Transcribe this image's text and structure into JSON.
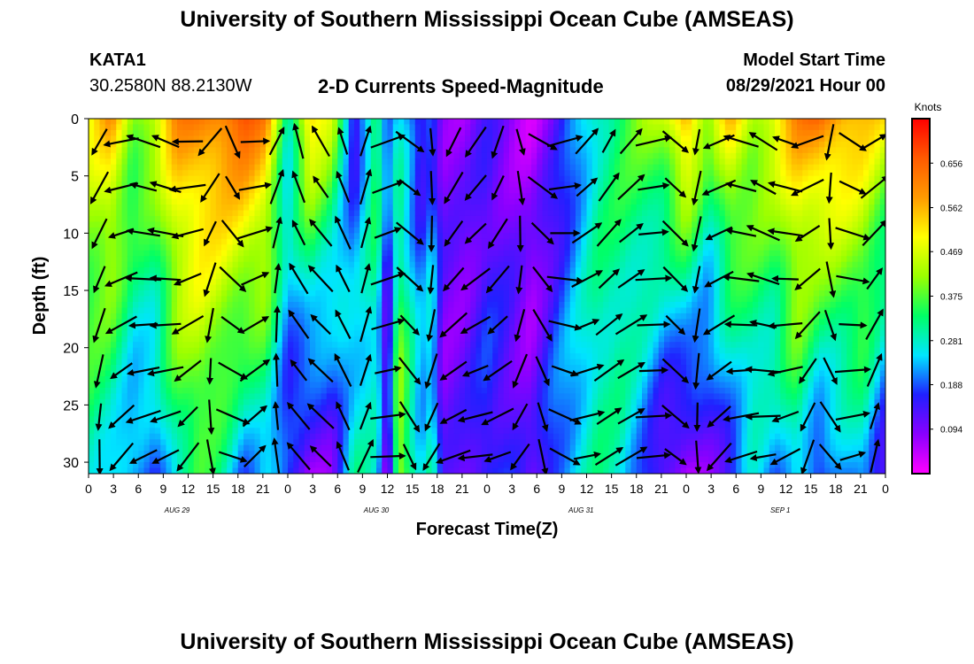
{
  "page": {
    "title_top": "University of Southern Mississippi Ocean Cube (AMSEAS)",
    "title_bottom": "University of Southern Mississippi Ocean Cube (AMSEAS)",
    "station": "KATA1",
    "coords": "30.2580N  88.2130W",
    "product": "2-D Currents Speed-Magnitude",
    "start_label": "Model Start Time",
    "start_value": "08/29/2021 Hour 00"
  },
  "colors": {
    "arrow": "#000000",
    "colormap": [
      "#ff00ff",
      "#8a00ff",
      "#2020ff",
      "#00e5ff",
      "#00ff66",
      "#9aff00",
      "#ffff00",
      "#ff9a00",
      "#ff5a00",
      "#ff0000"
    ]
  },
  "chart_data": {
    "type": "heatmap",
    "title": "2-D Currents Speed-Magnitude",
    "xlabel": "Forecast Time(Z)",
    "ylabel": "Depth (ft)",
    "colorbar_label": "Knots",
    "colorbar_ticks": [
      "0.656",
      "0.562",
      "0.469",
      "0.375",
      "0.281",
      "0.188",
      "0.094"
    ],
    "colorbar_tick_values": [
      0.656,
      0.562,
      0.469,
      0.375,
      0.281,
      0.188,
      0.094
    ],
    "vrange": [
      0.0,
      0.75
    ],
    "xlim": [
      0,
      72
    ],
    "ylim": [
      0,
      31
    ],
    "x_tick_labels": [
      "0",
      "3",
      "6",
      "9",
      "12",
      "15",
      "18",
      "21",
      "0",
      "3",
      "6",
      "9",
      "12",
      "15",
      "18",
      "21",
      "0",
      "3",
      "6",
      "9",
      "12",
      "15",
      "18",
      "21",
      "0",
      "3",
      "6",
      "9",
      "12",
      "15",
      "18",
      "21",
      "0"
    ],
    "day_labels": [
      {
        "hour": 8,
        "label": "AUG 29"
      },
      {
        "hour": 26,
        "label": "AUG 30"
      },
      {
        "hour": 44.5,
        "label": "AUG 31"
      },
      {
        "hour": 62.5,
        "label": "SEP 1"
      }
    ],
    "y_ticks": [
      0,
      5,
      10,
      15,
      20,
      25,
      30
    ],
    "speed_profile": {
      "hours": [
        0,
        2,
        4,
        6,
        8,
        10,
        12,
        14,
        16,
        18,
        20,
        22,
        24,
        26,
        27,
        28,
        30,
        31,
        32,
        34,
        36,
        38,
        40,
        42,
        44,
        46,
        48,
        50,
        52,
        54,
        56,
        58,
        60,
        62,
        64,
        66,
        68,
        70,
        72
      ],
      "surface": [
        0.48,
        0.58,
        0.42,
        0.47,
        0.6,
        0.62,
        0.64,
        0.68,
        0.6,
        0.3,
        0.55,
        0.45,
        0.12,
        0.38,
        0.2,
        0.25,
        0.12,
        0.18,
        0.1,
        0.08,
        0.12,
        0.08,
        0.05,
        0.1,
        0.2,
        0.3,
        0.35,
        0.4,
        0.45,
        0.6,
        0.4,
        0.55,
        0.45,
        0.5,
        0.6,
        0.65,
        0.6,
        0.55,
        0.5
      ],
      "bottom": [
        0.3,
        0.25,
        0.2,
        0.18,
        0.3,
        0.35,
        0.3,
        0.2,
        0.25,
        0.15,
        0.08,
        0.1,
        0.3,
        0.25,
        0.05,
        0.45,
        0.25,
        0.3,
        0.1,
        0.12,
        0.18,
        0.15,
        0.1,
        0.2,
        0.25,
        0.3,
        0.28,
        0.2,
        0.1,
        0.05,
        0.1,
        0.15,
        0.25,
        0.2,
        0.28,
        0.15,
        0.2,
        0.25,
        0.12
      ]
    },
    "arrow_depths_ft": [
      2,
      6,
      10,
      14,
      18,
      22,
      26,
      29.5
    ],
    "arrow_hours": [
      1,
      3,
      5,
      7,
      9,
      11,
      13,
      15,
      17,
      19,
      21,
      23,
      25,
      27,
      29,
      31,
      33,
      35,
      37,
      39,
      41,
      43,
      45,
      47,
      49,
      51,
      53,
      55,
      57,
      59,
      61,
      63,
      65,
      67,
      69,
      71
    ]
  }
}
